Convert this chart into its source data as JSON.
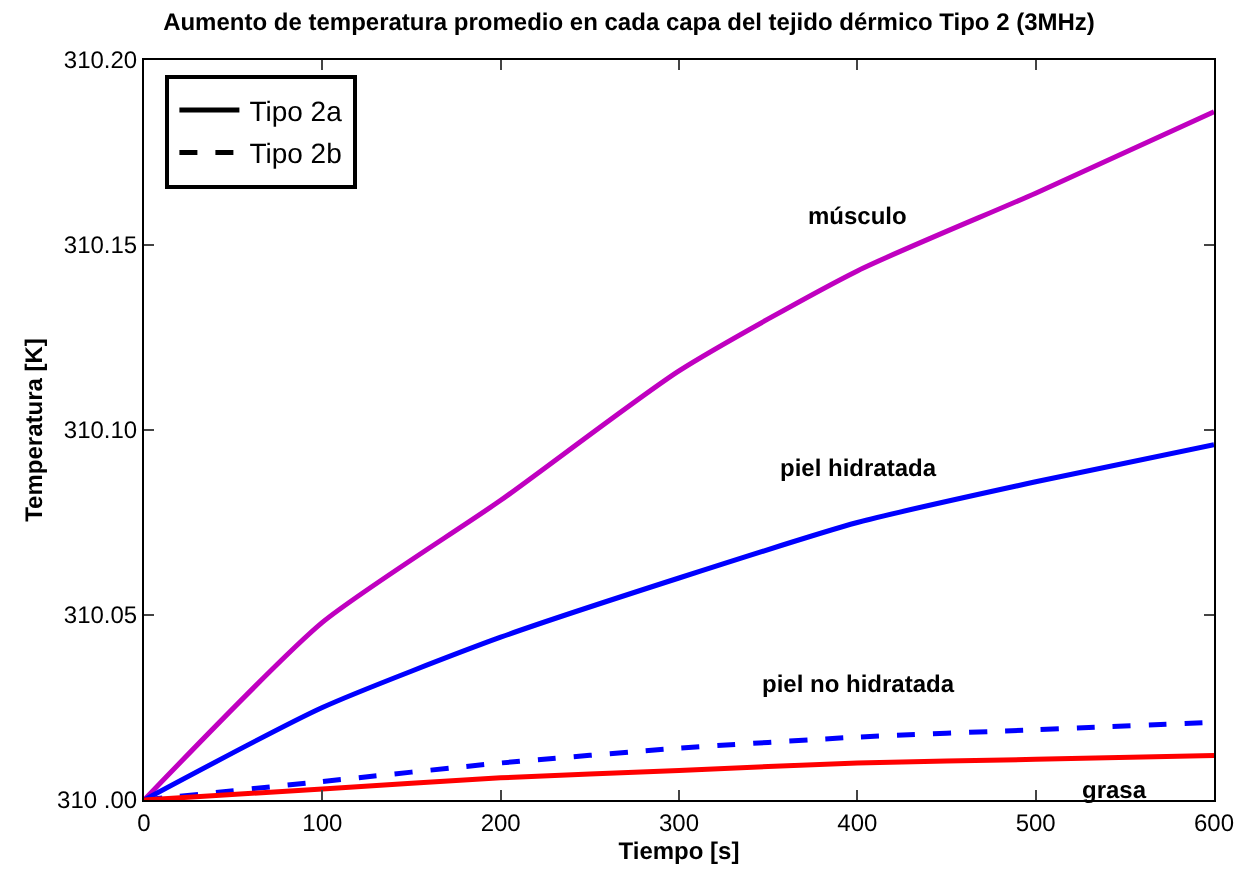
{
  "chart_data": {
    "type": "line",
    "title": "Aumento de temperatura promedio en cada capa del tejido dérmico Tipo 2 (3MHz)",
    "xlabel": "Tiempo [s]",
    "ylabel": "Temperatura [K]",
    "x": [
      0,
      100,
      200,
      300,
      400,
      500,
      600
    ],
    "series": [
      {
        "name": "Tipo 2a",
        "color": "#000000",
        "line_style": "solid",
        "values": [
          null,
          null,
          null,
          null,
          null,
          null,
          null
        ]
      },
      {
        "name": "Tipo 2b",
        "color": "#000000",
        "line_style": "dashed",
        "values": [
          null,
          null,
          null,
          null,
          null,
          null,
          null
        ]
      },
      {
        "name": "músculo",
        "color": "#c000c0",
        "line_style": "solid",
        "values": [
          310.0,
          310.048,
          310.081,
          310.116,
          310.143,
          310.164,
          310.186
        ]
      },
      {
        "name": "piel hidratada",
        "color": "#0000ff",
        "line_style": "solid",
        "values": [
          310.0,
          310.025,
          310.044,
          310.06,
          310.075,
          310.086,
          310.096
        ]
      },
      {
        "name": "piel no hidratada",
        "color": "#0000ff",
        "line_style": "dashed",
        "values": [
          310.0,
          310.005,
          310.01,
          310.014,
          310.017,
          310.019,
          310.021
        ]
      },
      {
        "name": "grasa",
        "color": "#ff0000",
        "line_style": "solid",
        "values": [
          310.0,
          310.003,
          310.006,
          310.008,
          310.01,
          310.011,
          310.012
        ]
      }
    ],
    "xlim": [
      0,
      600
    ],
    "xticks": [
      0,
      100,
      200,
      300,
      400,
      500,
      600
    ],
    "ylim": [
      310.0,
      310.2
    ],
    "yticks": [
      {
        "value": 310.0,
        "label": "310 .00"
      },
      {
        "value": 310.05,
        "label": "310.05"
      },
      {
        "value": 310.1,
        "label": "310.10"
      },
      {
        "value": 310.15,
        "label": "310.15"
      },
      {
        "value": 310.2,
        "label": "310.20"
      }
    ],
    "legend": "top left",
    "marker": "none"
  }
}
